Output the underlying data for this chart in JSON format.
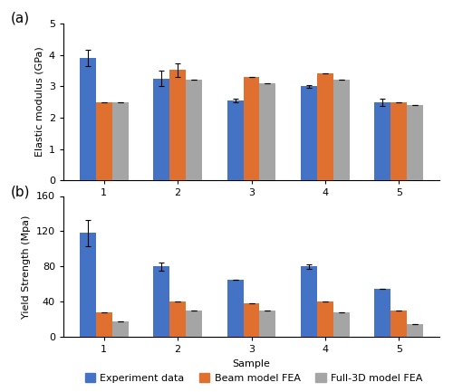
{
  "samples": [
    1,
    2,
    3,
    4,
    5
  ],
  "elastic_modulus": {
    "experiment": [
      3.9,
      3.25,
      2.55,
      3.0,
      2.48
    ],
    "beam_fea": [
      2.48,
      3.52,
      3.3,
      3.42,
      2.5
    ],
    "full3d_fea": [
      2.5,
      3.2,
      3.08,
      3.2,
      2.4
    ]
  },
  "elastic_errors": {
    "experiment": [
      0.25,
      0.25,
      0.05,
      0.04,
      0.12
    ],
    "beam_fea": [
      0.0,
      0.22,
      0.0,
      0.0,
      0.0
    ],
    "full3d_fea": [
      0.0,
      0.0,
      0.0,
      0.0,
      0.0
    ]
  },
  "yield_strength": {
    "experiment": [
      118,
      80,
      65,
      80,
      55
    ],
    "beam_fea": [
      28,
      40,
      38,
      40,
      30
    ],
    "full3d_fea": [
      18,
      30,
      30,
      28,
      15
    ]
  },
  "yield_errors": {
    "experiment": [
      15,
      5,
      0,
      3,
      0
    ],
    "beam_fea": [
      0,
      0,
      0,
      0,
      0
    ],
    "full3d_fea": [
      0,
      0,
      0,
      0,
      0
    ]
  },
  "colors": {
    "experiment": "#4472C4",
    "beam_fea": "#E07030",
    "full3d_fea": "#A5A5A5"
  },
  "legend_labels": [
    "Experiment data",
    "Beam model FEA",
    "Full-3D model FEA"
  ],
  "elastic_ylabel": "Elastic modulus (GPa)",
  "yield_ylabel": "Yield Strength (Mpa)",
  "xlabel": "Sample",
  "elastic_ylim": [
    0,
    5
  ],
  "elastic_yticks": [
    0,
    1,
    2,
    3,
    4,
    5
  ],
  "yield_ylim": [
    0,
    160
  ],
  "yield_yticks": [
    0,
    40,
    80,
    120,
    160
  ],
  "subplot_labels": [
    "(a)",
    "(b)"
  ],
  "bar_width": 0.22,
  "figure_width": 5.0,
  "figure_height": 4.33,
  "dpi": 100
}
